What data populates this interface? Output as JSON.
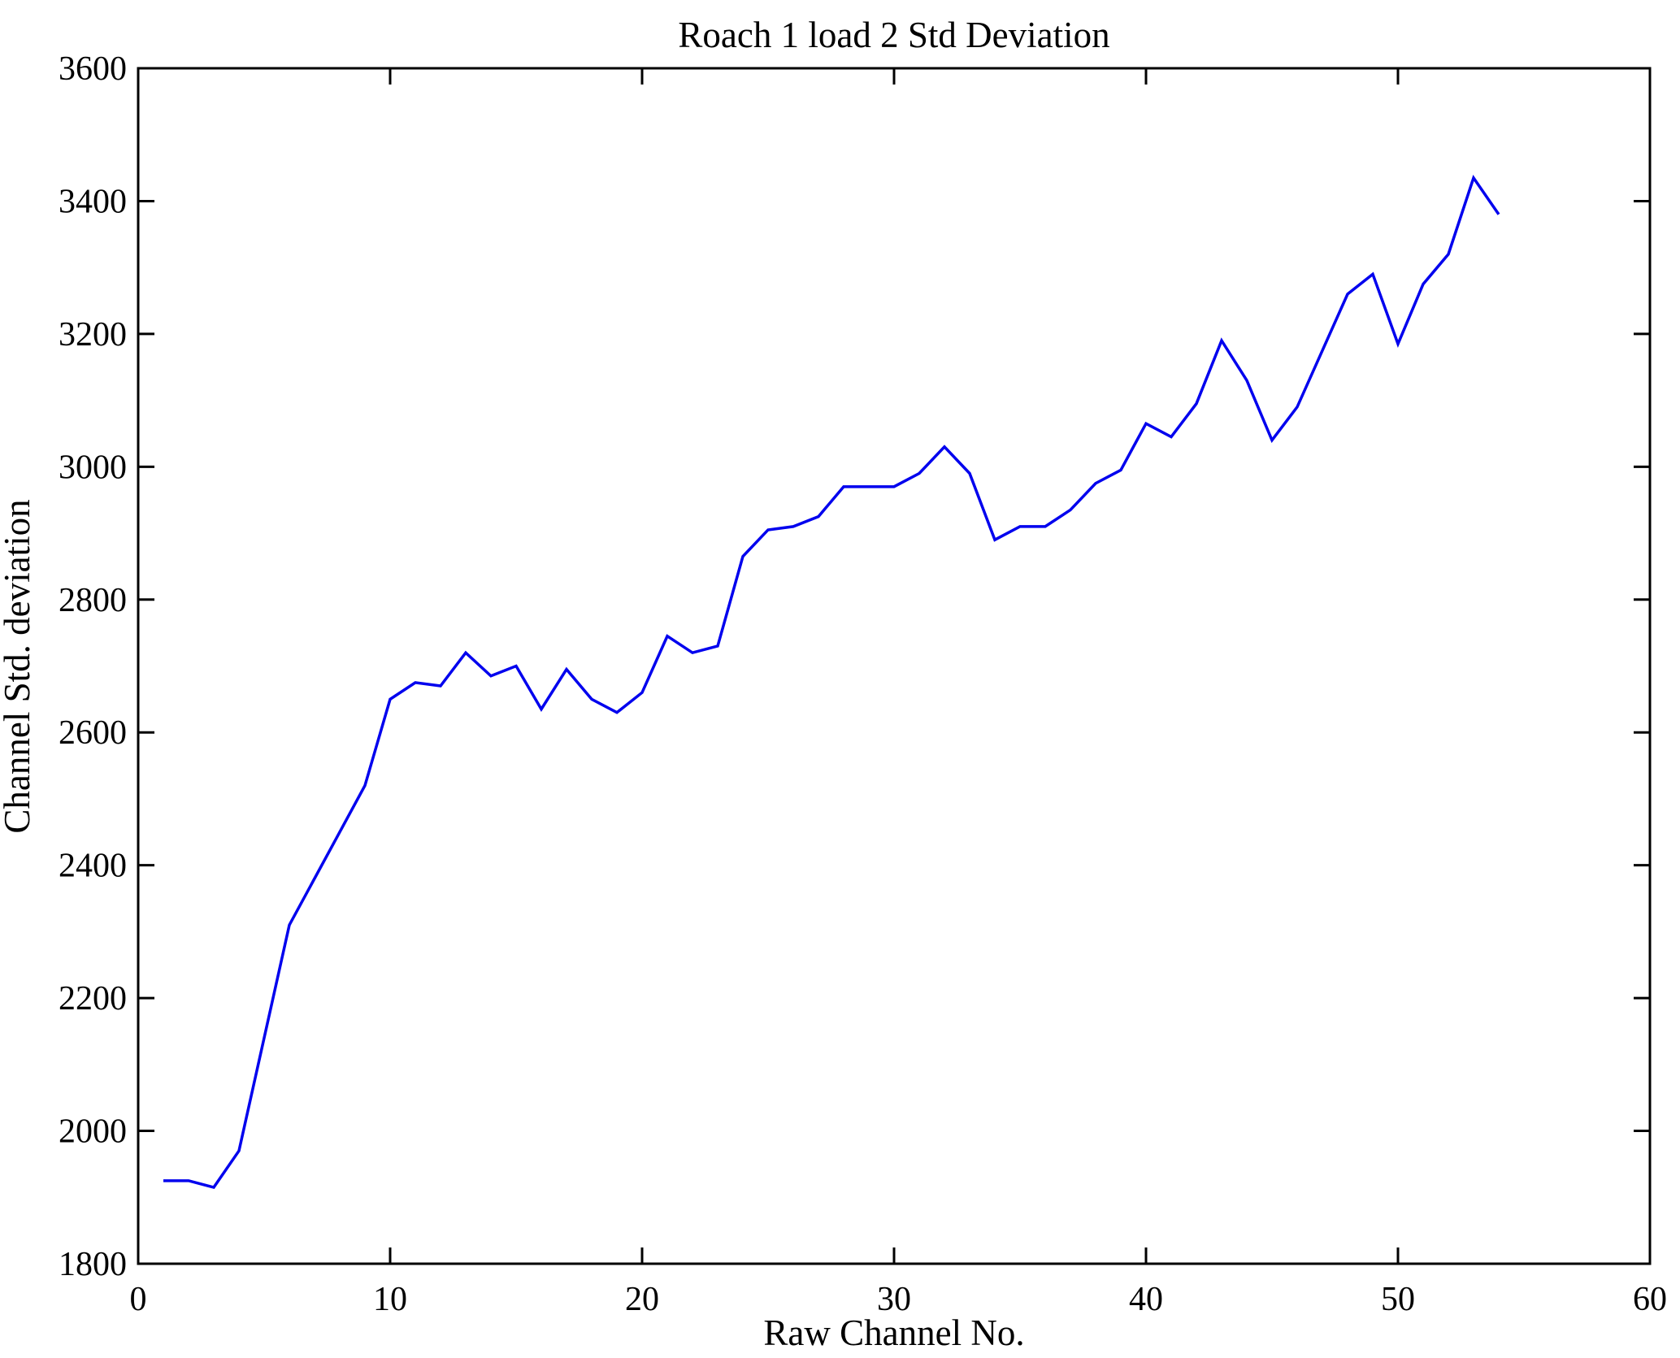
{
  "chart_data": {
    "type": "line",
    "title": "Roach 1 load 2 Std Deviation",
    "xlabel": "Raw Channel No.",
    "ylabel": "Channel Std. deviation",
    "xlim": [
      0,
      60
    ],
    "ylim": [
      1800,
      3600
    ],
    "x_ticks": [
      0,
      10,
      20,
      30,
      40,
      50,
      60
    ],
    "y_ticks": [
      1800,
      2000,
      2200,
      2400,
      2600,
      2800,
      3000,
      3200,
      3400,
      3600
    ],
    "grid": false,
    "legend": null,
    "background_color": "#ffffff",
    "axis_color": "#000000",
    "line_color": "#0000ee",
    "series": [
      {
        "name": "channel-std-deviation",
        "x": [
          1,
          2,
          3,
          4,
          5,
          6,
          7,
          8,
          9,
          10,
          11,
          12,
          13,
          14,
          15,
          16,
          17,
          18,
          19,
          20,
          21,
          22,
          23,
          24,
          25,
          26,
          27,
          28,
          29,
          30,
          31,
          32,
          33,
          34,
          35,
          36,
          37,
          38,
          39,
          40,
          41,
          42,
          43,
          44,
          45,
          46,
          47,
          48,
          49,
          50,
          51,
          52,
          53,
          54
        ],
        "values": [
          1925,
          1925,
          1915,
          1970,
          2140,
          2310,
          2380,
          2450,
          2520,
          2650,
          2675,
          2670,
          2720,
          2685,
          2700,
          2635,
          2695,
          2650,
          2630,
          2660,
          2745,
          2720,
          2730,
          2865,
          2905,
          2910,
          2925,
          2970,
          2970,
          2970,
          2990,
          3030,
          2990,
          2890,
          2910,
          2910,
          2935,
          2975,
          2995,
          3065,
          3045,
          3095,
          3190,
          3130,
          3040,
          3090,
          3175,
          3260,
          3290,
          3185,
          3275,
          3320,
          3435,
          3380
        ]
      }
    ]
  }
}
